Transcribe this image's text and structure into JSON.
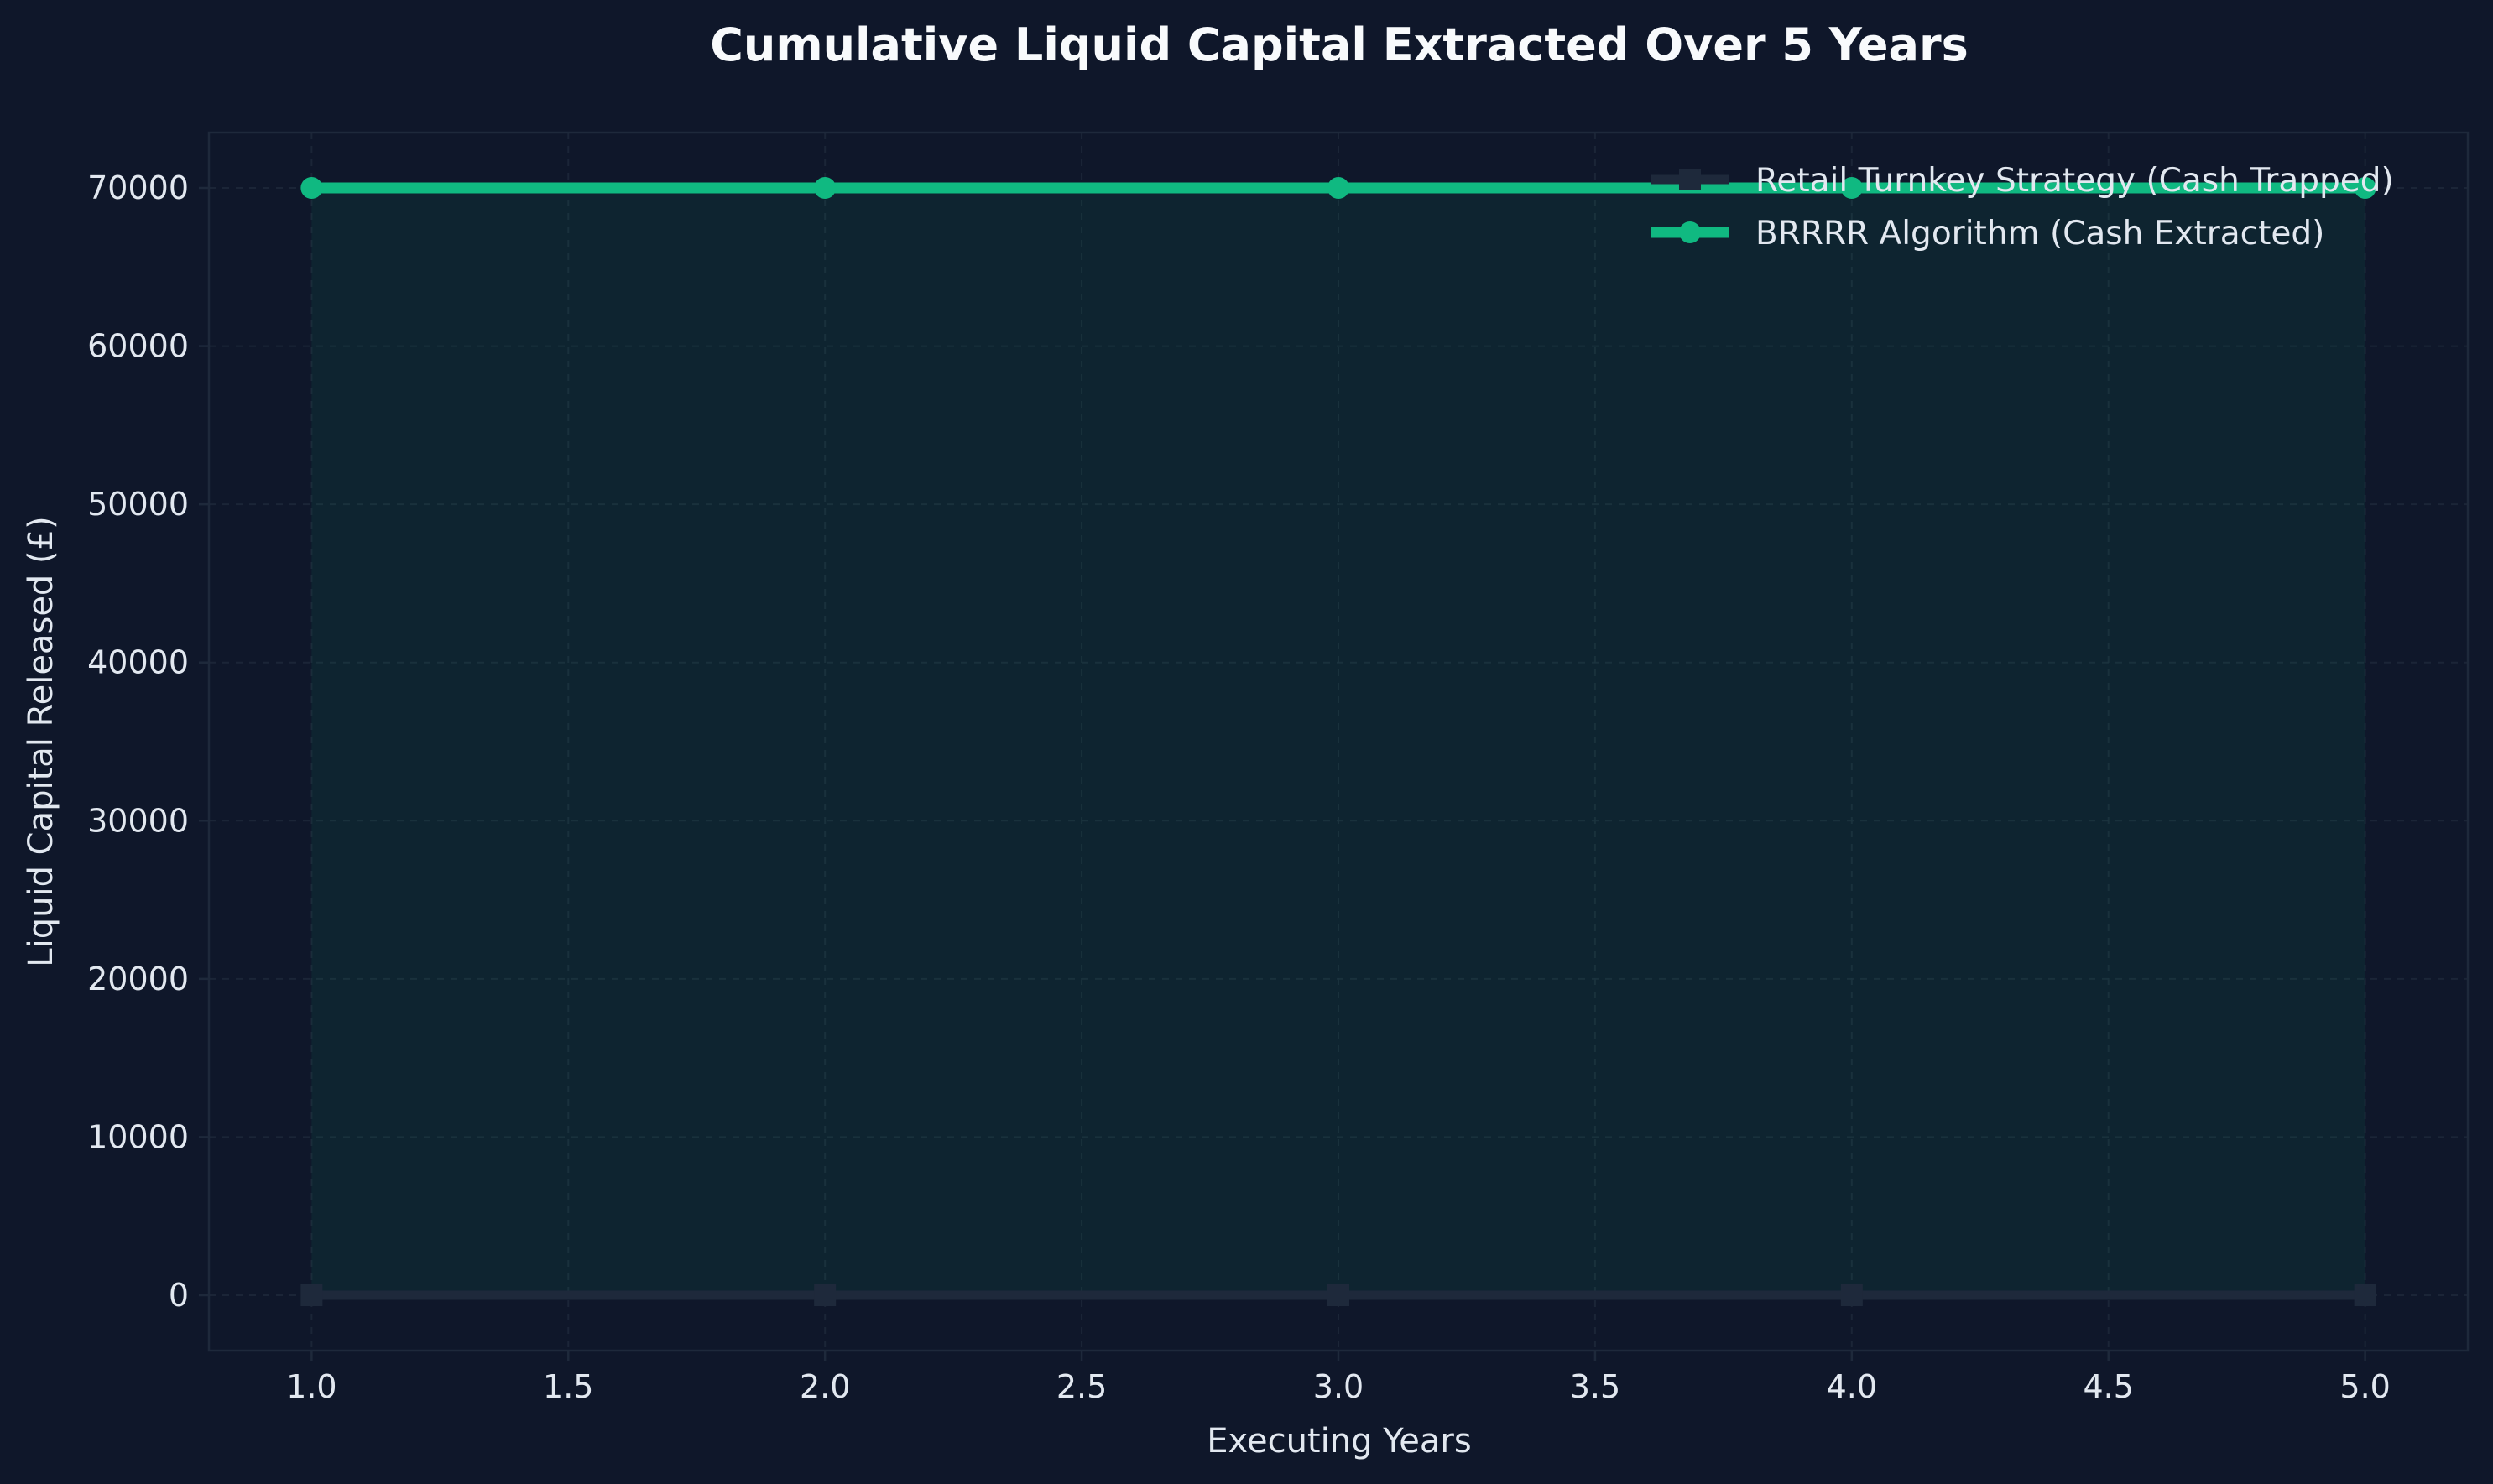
{
  "colors": {
    "background": "#0f172a",
    "plot_background": "#0f172a",
    "spine": "#1e293b",
    "grid": "#1e293b",
    "brrrr": "#10b981",
    "turnkey": "#1e293b",
    "fill": "#0f2a33",
    "text": "#e2e8f0",
    "title": "#f8fafc"
  },
  "chart_data": {
    "type": "line",
    "title": "Cumulative Liquid Capital Extracted Over 5 Years",
    "xlabel": "Executing Years",
    "ylabel": "Liquid Capital Released (£)",
    "xlim": [
      0.8,
      5.2
    ],
    "ylim": [
      -3500,
      73500
    ],
    "x_ticks": [
      1.0,
      1.5,
      2.0,
      2.5,
      3.0,
      3.5,
      4.0,
      4.5,
      5.0
    ],
    "x_tick_labels": [
      "1.0",
      "1.5",
      "2.0",
      "2.5",
      "3.0",
      "3.5",
      "4.0",
      "4.5",
      "5.0"
    ],
    "y_ticks": [
      0,
      10000,
      20000,
      30000,
      40000,
      50000,
      60000,
      70000
    ],
    "y_tick_labels": [
      "0",
      "10000",
      "20000",
      "30000",
      "40000",
      "50000",
      "60000",
      "70000"
    ],
    "grid": true,
    "legend_position": "top-right",
    "x": [
      1,
      2,
      3,
      4,
      5
    ],
    "series": [
      {
        "name": "Retail Turnkey Strategy (Cash Trapped)",
        "values": [
          0,
          0,
          0,
          0,
          0
        ],
        "marker": "square",
        "color": "#1e293b"
      },
      {
        "name": "BRRRR Algorithm (Cash Extracted)",
        "values": [
          70000,
          70000,
          70000,
          70000,
          70000
        ],
        "marker": "circle",
        "color": "#10b981"
      }
    ],
    "fill_between": true
  }
}
